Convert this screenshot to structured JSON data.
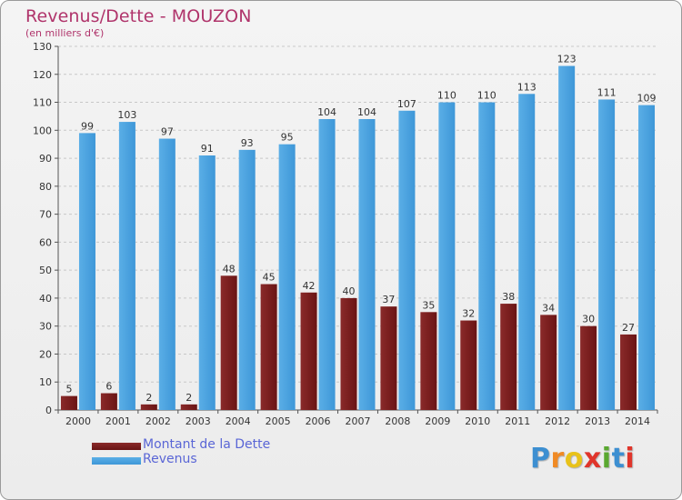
{
  "header": {
    "title": "Revenus/Dette - MOUZON",
    "subtitle": "(en milliers d'€)"
  },
  "legend": {
    "dette_label": "Montant de la Dette",
    "revenus_label": "Revenus"
  },
  "logo": {
    "letters": [
      "P",
      "r",
      "o",
      "x",
      "i",
      "t",
      "i"
    ],
    "colors": [
      "#3d8fd1",
      "#f08a24",
      "#e8c21a",
      "#e0352b",
      "#5aa830",
      "#3d8fd1",
      "#e0352b"
    ]
  },
  "colors": {
    "revenus": "#3e97d8",
    "dette": "#6a1414",
    "title": "#b0346b",
    "legend_text": "#5a66d6"
  },
  "chart_data": {
    "type": "bar",
    "title": "Revenus/Dette - MOUZON",
    "subtitle": "(en milliers d'€)",
    "categories": [
      "2000",
      "2001",
      "2002",
      "2003",
      "2004",
      "2005",
      "2006",
      "2007",
      "2008",
      "2009",
      "2010",
      "2011",
      "2012",
      "2013",
      "2014"
    ],
    "series": [
      {
        "name": "Montant de la Dette",
        "values": [
          5,
          6,
          2,
          2,
          48,
          45,
          42,
          40,
          37,
          35,
          32,
          38,
          34,
          30,
          27
        ]
      },
      {
        "name": "Revenus",
        "values": [
          99,
          103,
          97,
          91,
          93,
          95,
          104,
          104,
          107,
          110,
          110,
          113,
          123,
          111,
          109
        ]
      }
    ],
    "ylim": [
      0,
      130
    ],
    "yticks": [
      0,
      10,
      20,
      30,
      40,
      50,
      60,
      70,
      80,
      90,
      100,
      110,
      120,
      130
    ],
    "grid": true,
    "legend_position": "bottom-left"
  }
}
